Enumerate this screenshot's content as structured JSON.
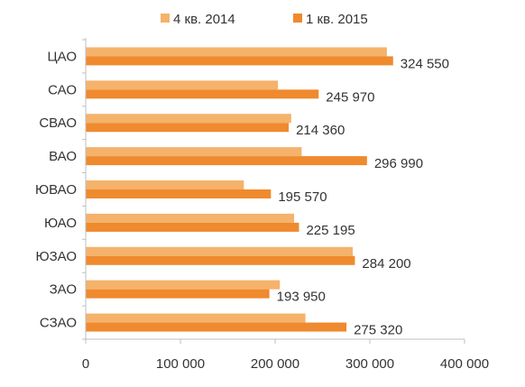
{
  "chart_data": {
    "type": "bar",
    "orientation": "horizontal",
    "title": "",
    "xlabel": "",
    "ylabel": "",
    "categories": [
      "ЦАО",
      "САО",
      "СВАО",
      "ВАО",
      "ЮВАО",
      "ЮАО",
      "ЮЗАО",
      "ЗАО",
      "СЗАО"
    ],
    "series": [
      {
        "name": "4 кв. 2014",
        "color": "#f5b26b",
        "values": [
          318000,
          203000,
          217000,
          228000,
          167000,
          220000,
          282000,
          205000,
          232000
        ]
      },
      {
        "name": "1 кв. 2015",
        "color": "#ef8a2e",
        "values": [
          324550,
          245970,
          214360,
          296990,
          195570,
          225195,
          284200,
          193950,
          275320
        ]
      }
    ],
    "data_labels": [
      "324 550",
      "245 970",
      "214 360",
      "296 990",
      "195 570",
      "225 195",
      "284 200",
      "193 950",
      "275 320"
    ],
    "xlim": [
      0,
      400000
    ],
    "x_ticks": [
      0,
      100000,
      200000,
      300000,
      400000
    ],
    "x_tick_labels": [
      "0",
      "100 000",
      "200 000",
      "300 000",
      "400 000"
    ],
    "legend_position": "top",
    "grid": false
  }
}
